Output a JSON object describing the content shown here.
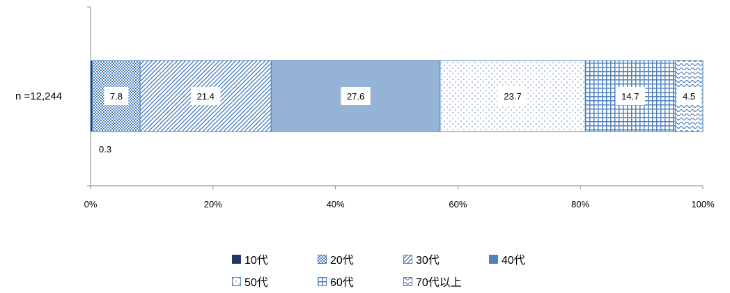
{
  "chart_data": {
    "type": "bar",
    "orientation": "horizontal",
    "stacked": "percent",
    "categories": [
      "n =12,244"
    ],
    "series": [
      {
        "name": "10代",
        "values": [
          0.3
        ],
        "label": "0.3"
      },
      {
        "name": "20代",
        "values": [
          7.8
        ],
        "label": "7.8"
      },
      {
        "name": "30代",
        "values": [
          21.4
        ],
        "label": "21.4"
      },
      {
        "name": "40代",
        "values": [
          27.6
        ],
        "label": "27.6"
      },
      {
        "name": "50代",
        "values": [
          23.7
        ],
        "label": "23.7"
      },
      {
        "name": "60代",
        "values": [
          14.7
        ],
        "label": "14.7"
      },
      {
        "name": "70代以上",
        "values": [
          4.5
        ],
        "label": "4.5"
      }
    ],
    "xticks": [
      "0%",
      "20%",
      "40%",
      "60%",
      "80%",
      "100%"
    ],
    "xlim": [
      0,
      100
    ],
    "legend_position": "bottom",
    "grid": false,
    "colors": {
      "bar_outline": "#4f81bd",
      "dark": "#1f3864",
      "medium": "#95b3d7",
      "pattern": "#4f81bd"
    }
  }
}
